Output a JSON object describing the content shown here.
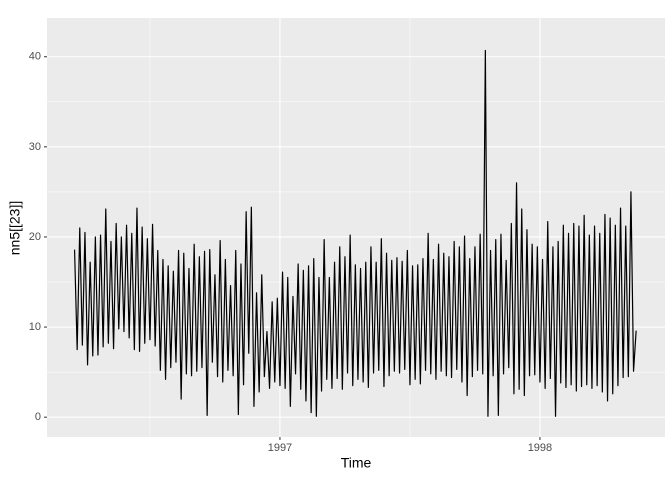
{
  "chart_data": {
    "type": "line",
    "xlabel": "Time",
    "ylabel": "nn5[[23]]",
    "x": [
      1996.21,
      1996.22,
      1996.23,
      1996.24,
      1996.25,
      1996.26,
      1996.27,
      1996.28,
      1996.29,
      1996.3,
      1996.31,
      1996.32,
      1996.33,
      1996.34,
      1996.35,
      1996.36,
      1996.37,
      1996.38,
      1996.39,
      1996.4,
      1996.41,
      1996.42,
      1996.43,
      1996.44,
      1996.45,
      1996.46,
      1996.47,
      1996.48,
      1996.49,
      1996.5,
      1996.51,
      1996.52,
      1996.53,
      1996.54,
      1996.55,
      1996.56,
      1996.57,
      1996.58,
      1996.59,
      1996.6,
      1996.61,
      1996.62,
      1996.63,
      1996.64,
      1996.65,
      1996.66,
      1996.67,
      1996.68,
      1996.69,
      1996.7,
      1996.71,
      1996.72,
      1996.73,
      1996.74,
      1996.75,
      1996.76,
      1996.77,
      1996.78,
      1996.79,
      1996.8,
      1996.81,
      1996.82,
      1996.83,
      1996.84,
      1996.85,
      1996.86,
      1996.87,
      1996.88,
      1996.89,
      1996.9,
      1996.91,
      1996.92,
      1996.93,
      1996.94,
      1996.95,
      1996.96,
      1996.97,
      1996.98,
      1996.99,
      1997.0,
      1997.01,
      1997.02,
      1997.03,
      1997.04,
      1997.05,
      1997.06,
      1997.07,
      1997.08,
      1997.09,
      1997.1,
      1997.11,
      1997.12,
      1997.13,
      1997.14,
      1997.15,
      1997.16,
      1997.17,
      1997.18,
      1997.19,
      1997.2,
      1997.21,
      1997.22,
      1997.23,
      1997.24,
      1997.25,
      1997.26,
      1997.27,
      1997.28,
      1997.29,
      1997.3,
      1997.31,
      1997.32,
      1997.33,
      1997.34,
      1997.35,
      1997.36,
      1997.37,
      1997.38,
      1997.39,
      1997.4,
      1997.41,
      1997.42,
      1997.43,
      1997.44,
      1997.45,
      1997.46,
      1997.47,
      1997.48,
      1997.49,
      1997.5,
      1997.51,
      1997.52,
      1997.53,
      1997.54,
      1997.55,
      1997.56,
      1997.57,
      1997.58,
      1997.59,
      1997.6,
      1997.61,
      1997.62,
      1997.63,
      1997.64,
      1997.65,
      1997.66,
      1997.67,
      1997.68,
      1997.69,
      1997.7,
      1997.71,
      1997.72,
      1997.73,
      1997.74,
      1997.75,
      1997.76,
      1997.77,
      1997.78,
      1997.79,
      1997.8,
      1997.81,
      1997.82,
      1997.83,
      1997.84,
      1997.85,
      1997.86,
      1997.87,
      1997.88,
      1997.89,
      1997.9,
      1997.91,
      1997.92,
      1997.93,
      1997.94,
      1997.95,
      1997.96,
      1997.97,
      1997.98,
      1997.99,
      1998.0,
      1998.01,
      1998.02,
      1998.03,
      1998.04,
      1998.05,
      1998.06,
      1998.07,
      1998.08,
      1998.09,
      1998.1,
      1998.11,
      1998.12,
      1998.13,
      1998.14,
      1998.15,
      1998.16,
      1998.17,
      1998.18,
      1998.19,
      1998.2,
      1998.21,
      1998.22,
      1998.23,
      1998.24,
      1998.25,
      1998.26,
      1998.27,
      1998.28,
      1998.29,
      1998.3,
      1998.31,
      1998.32,
      1998.33,
      1998.34,
      1998.35,
      1998.36,
      1998.37
    ],
    "values": [
      18.6,
      7.5,
      21,
      8,
      20.5,
      5.8,
      17.2,
      6.8,
      20,
      6.9,
      20.2,
      7.8,
      23.1,
      8.2,
      19.5,
      7.6,
      21.5,
      9.8,
      20,
      9.5,
      21.3,
      8.8,
      20.4,
      7.5,
      23.2,
      7.3,
      21.1,
      8.2,
      19.8,
      8.6,
      21.4,
      7.9,
      18.5,
      5.2,
      17.5,
      4.2,
      16.8,
      5.5,
      16.2,
      6.1,
      18.5,
      2,
      18.2,
      4.8,
      16.5,
      4.6,
      19.2,
      5.1,
      17.8,
      5.5,
      18.4,
      0.2,
      18.6,
      6.1,
      15.8,
      4.5,
      19.6,
      3.9,
      17.5,
      5.2,
      14.6,
      4.6,
      18.5,
      0.3,
      17,
      3.6,
      22.8,
      7.1,
      23.3,
      1.2,
      13.8,
      2.8,
      15.8,
      4.5,
      9.5,
      3.2,
      12.8,
      3.9,
      13.2,
      3.5,
      16.1,
      3.2,
      15.5,
      1.2,
      13.4,
      4.8,
      17,
      3.1,
      16.3,
      1.8,
      16.8,
      0.5,
      17.6,
      0.1,
      15.5,
      2.9,
      19.7,
      4.2,
      15.5,
      3.2,
      17.2,
      4.3,
      18.9,
      3.1,
      17.8,
      4.9,
      20.2,
      3.5,
      16.9,
      4.2,
      16.5,
      3.9,
      17.2,
      3.3,
      18.9,
      4.9,
      17.2,
      5.2,
      19.8,
      3.4,
      18.2,
      4.6,
      17.4,
      5.1,
      17.7,
      4.9,
      17.3,
      5.3,
      18.5,
      3.6,
      16.8,
      4.2,
      16.9,
      3.7,
      17.6,
      5.2,
      20.4,
      4.8,
      17.5,
      4.2,
      19.2,
      5.1,
      18.2,
      4.6,
      17.8,
      4.4,
      19.5,
      5.3,
      18.9,
      3.9,
      20.1,
      2.4,
      17.6,
      4.5,
      18.9,
      5.2,
      20.3,
      4.8,
      40.7,
      0.1,
      18.5,
      4.6,
      19.7,
      0.2,
      20.3,
      4.8,
      17.4,
      5.5,
      21.5,
      2.6,
      26,
      3.1,
      23.1,
      2.4,
      20.8,
      4.6,
      19.2,
      4.7,
      18.9,
      3.9,
      17.5,
      3.2,
      21.7,
      4.3,
      18.9,
      0.1,
      19.5,
      3.8,
      21.3,
      3.3,
      20.4,
      3.6,
      21.5,
      2.9,
      21.2,
      3.4,
      22.4,
      3.6,
      20.2,
      3.2,
      21.2,
      3.5,
      20.4,
      2.8,
      22.5,
      1.8,
      22.1,
      2.6,
      21.3,
      3.5,
      23.2,
      4.4,
      21.2,
      4.5,
      25,
      5.1,
      9.6
    ],
    "color": "#000000",
    "xlim": [
      1996.104,
      1998.481
    ],
    "xticks": [
      1997,
      1998
    ],
    "ylim": [
      -2.2,
      44.3
    ],
    "yticks": [
      0,
      10,
      20,
      30,
      40
    ],
    "grid": true
  }
}
